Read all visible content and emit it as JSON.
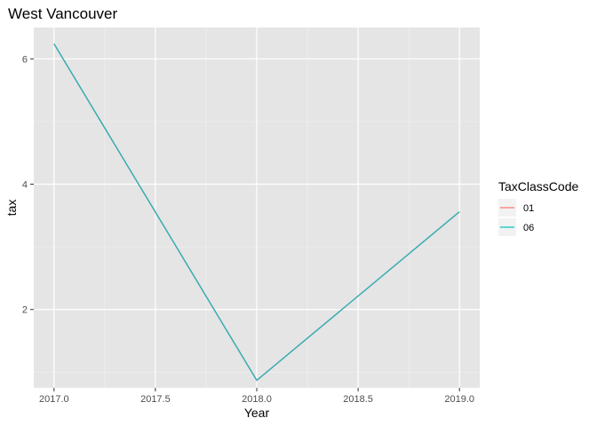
{
  "chart_data": {
    "type": "line",
    "title": "West Vancouver",
    "xlabel": "Year",
    "ylabel": "tax",
    "xlim": [
      2016.9,
      2019.1
    ],
    "ylim": [
      0.75,
      6.5
    ],
    "x_ticks": [
      2017.0,
      2017.5,
      2018.0,
      2018.5,
      2019.0
    ],
    "x_tick_labels": [
      "2017.0",
      "2017.5",
      "2018.0",
      "2018.5",
      "2019.0"
    ],
    "y_ticks": [
      2,
      4,
      6
    ],
    "y_tick_labels": [
      "2",
      "4",
      "6"
    ],
    "grid": true,
    "legend": {
      "title": "TaxClassCode",
      "position": "right",
      "entries": [
        {
          "label": "01",
          "color": "#F8766D"
        },
        {
          "label": "06",
          "color": "#00BFC4"
        }
      ]
    },
    "series": [
      {
        "name": "06",
        "color": "#3AABAE",
        "x": [
          2017,
          2018,
          2019
        ],
        "y": [
          6.24,
          0.87,
          3.56
        ]
      }
    ]
  },
  "colors": {
    "panel_background": "#E5E5E5",
    "grid_major": "#FFFFFF",
    "grid_minor": "#F2F2F2",
    "legend_key_background": "#F2F2F2"
  }
}
